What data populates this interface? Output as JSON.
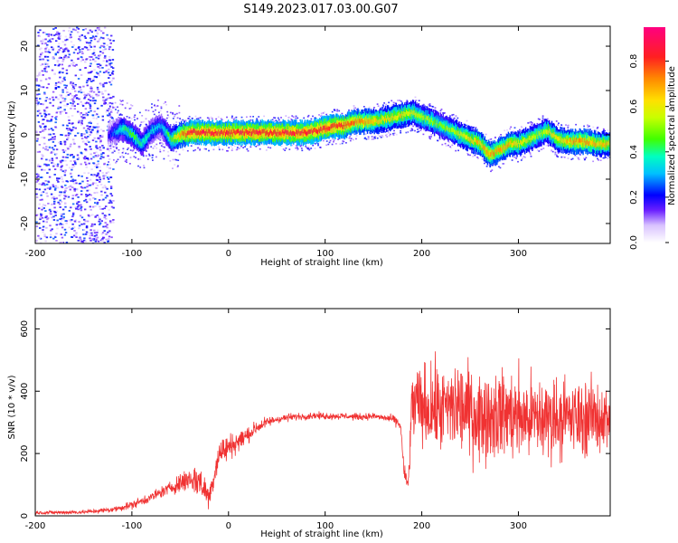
{
  "chart_data": [
    {
      "type": "heatmap",
      "title": "S149.2023.017.03.00.G07",
      "xlabel": "Height of straight line (km)",
      "ylabel": "Frequency (Hz)",
      "xlim": [
        -200,
        395
      ],
      "ylim": [
        -24.5,
        24.5
      ],
      "xticks": [
        -200,
        -100,
        0,
        100,
        200,
        300
      ],
      "yticks": [
        -20,
        -10,
        0,
        10,
        20
      ],
      "colorbar": {
        "label": "Normalized spectral amplitude",
        "range": [
          0,
          0.95
        ],
        "ticks": [
          0.0,
          0.2,
          0.4,
          0.6,
          0.8
        ],
        "tick_labels": [
          "0.0",
          "0.2",
          "0.4",
          "0.6",
          "0.8"
        ]
      },
      "ridge": {
        "x": [
          -200,
          -125,
          -110,
          -100,
          -90,
          -80,
          -70,
          -60,
          -50,
          -40,
          -20,
          0,
          20,
          40,
          60,
          80,
          90,
          100,
          110,
          120,
          130,
          140,
          150,
          160,
          170,
          180,
          190,
          200,
          210,
          220,
          230,
          240,
          250,
          260,
          270,
          280,
          290,
          300,
          310,
          320,
          330,
          340,
          350,
          360,
          370,
          380,
          395
        ],
        "y": [
          0,
          0,
          1.5,
          0,
          -2,
          1,
          2,
          -1,
          0,
          0.5,
          0.5,
          0.5,
          0.5,
          0.5,
          0.5,
          0.5,
          1,
          1.5,
          2,
          2,
          3,
          3,
          3,
          3.5,
          4,
          4.5,
          5,
          4,
          3,
          2,
          1,
          0,
          -1,
          -2,
          -4.5,
          -3.5,
          -2,
          -2,
          -1,
          0,
          1,
          -1,
          -1.5,
          -1.5,
          -1.5,
          -2,
          -2
        ],
        "strength": [
          0.15,
          0.2,
          0.45,
          0.5,
          0.45,
          0.4,
          0.35,
          0.55,
          0.8,
          0.95,
          0.95,
          0.95,
          0.95,
          0.95,
          0.95,
          0.95,
          0.95,
          0.95,
          0.95,
          0.9,
          0.85,
          0.8,
          0.75,
          0.7,
          0.7,
          0.7,
          0.65,
          0.6,
          0.6,
          0.55,
          0.6,
          0.65,
          0.7,
          0.75,
          0.8,
          0.8,
          0.75,
          0.7,
          0.65,
          0.6,
          0.65,
          0.7,
          0.75,
          0.8,
          0.8,
          0.75,
          0.7
        ]
      }
    },
    {
      "type": "line",
      "xlabel": "Height of straight line (km)",
      "ylabel": "SNR (10 * v/v)",
      "xlim": [
        -200,
        395
      ],
      "ylim": [
        0,
        665
      ],
      "xticks": [
        -200,
        -100,
        0,
        100,
        200,
        300
      ],
      "yticks": [
        0,
        200,
        400,
        600
      ],
      "series": [
        {
          "color": "#f03232",
          "x": [
            -200,
            -150,
            -120,
            -100,
            -80,
            -60,
            -40,
            -30,
            -20,
            -10,
            0,
            10,
            20,
            30,
            40,
            50,
            60,
            70,
            80,
            90,
            100,
            110,
            120,
            130,
            140,
            150,
            160,
            170,
            175,
            178,
            182,
            186,
            190,
            200,
            220,
            240,
            260,
            280,
            300,
            320,
            340,
            360,
            380,
            395
          ],
          "y": [
            10,
            12,
            20,
            35,
            60,
            90,
            120,
            110,
            60,
            200,
            220,
            240,
            260,
            285,
            300,
            310,
            315,
            318,
            320,
            322,
            320,
            320,
            320,
            318,
            318,
            320,
            315,
            310,
            300,
            290,
            130,
            100,
            360,
            350,
            340,
            350,
            320,
            330,
            320,
            310,
            320,
            310,
            320,
            310
          ],
          "noise": [
            5,
            6,
            8,
            12,
            15,
            18,
            40,
            50,
            35,
            45,
            40,
            30,
            25,
            20,
            15,
            12,
            12,
            10,
            10,
            10,
            10,
            10,
            10,
            10,
            10,
            10,
            10,
            12,
            15,
            20,
            25,
            30,
            110,
            120,
            130,
            140,
            130,
            130,
            130,
            130,
            120,
            110,
            110,
            100
          ]
        }
      ]
    }
  ]
}
